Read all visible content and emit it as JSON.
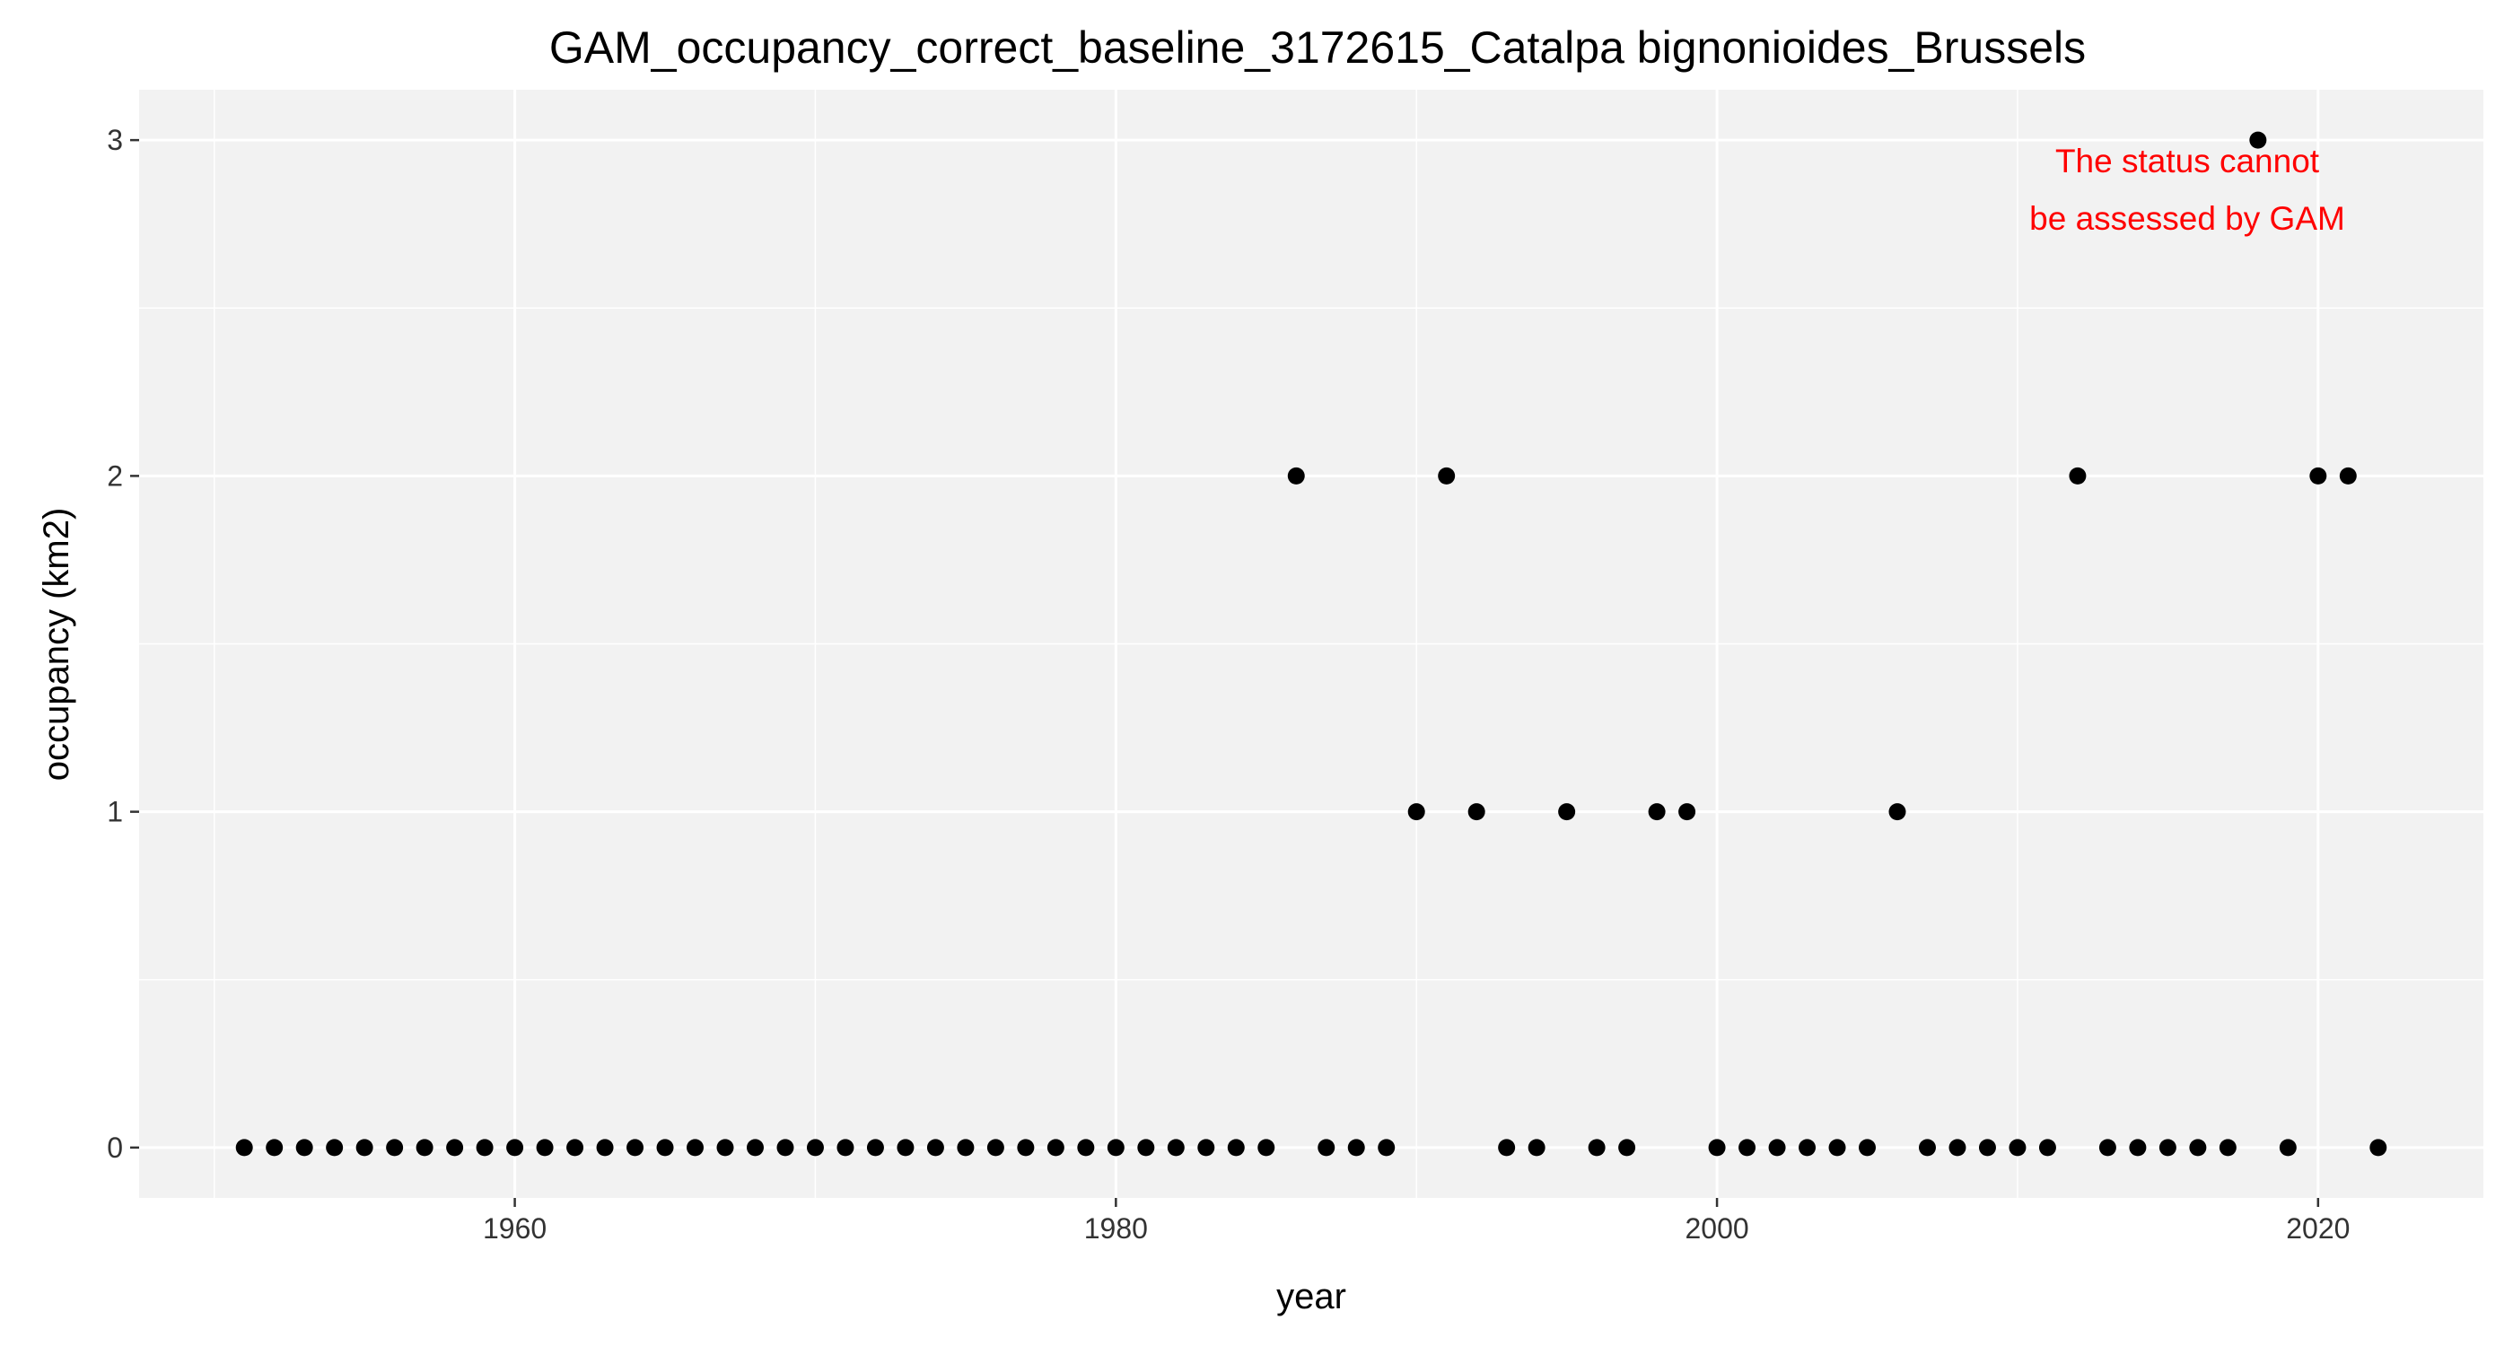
{
  "chart_data": {
    "type": "scatter",
    "title": "GAM_occupancy_correct_baseline_3172615_Catalpa bignonioides_Brussels",
    "xlabel": "year",
    "ylabel": "occupancy (km2)",
    "xlim": [
      1947.5,
      2025.5
    ],
    "ylim": [
      -0.15,
      3.15
    ],
    "x_ticks": [
      1960,
      1980,
      2000,
      2020
    ],
    "y_ticks": [
      0,
      1,
      2,
      3
    ],
    "grid": true,
    "legend": "none",
    "annotation": {
      "lines": [
        "The status cannot",
        "be assessed by GAM"
      ],
      "color": "#ff0000"
    },
    "colors": {
      "panel_background": "#f2f2f2",
      "grid": "#ffffff",
      "points": "#000000"
    },
    "x": [
      1951,
      1952,
      1953,
      1954,
      1955,
      1956,
      1957,
      1958,
      1959,
      1960,
      1961,
      1962,
      1963,
      1964,
      1965,
      1966,
      1967,
      1968,
      1969,
      1970,
      1971,
      1972,
      1973,
      1974,
      1975,
      1976,
      1977,
      1978,
      1979,
      1980,
      1981,
      1982,
      1983,
      1984,
      1985,
      1986,
      1987,
      1988,
      1989,
      1990,
      1991,
      1992,
      1993,
      1994,
      1995,
      1996,
      1997,
      1998,
      1999,
      2000,
      2001,
      2002,
      2003,
      2004,
      2005,
      2006,
      2007,
      2008,
      2009,
      2010,
      2011,
      2012,
      2013,
      2014,
      2015,
      2016,
      2017,
      2018,
      2019,
      2020,
      2021,
      2022
    ],
    "y": [
      0,
      0,
      0,
      0,
      0,
      0,
      0,
      0,
      0,
      0,
      0,
      0,
      0,
      0,
      0,
      0,
      0,
      0,
      0,
      0,
      0,
      0,
      0,
      0,
      0,
      0,
      0,
      0,
      0,
      0,
      0,
      0,
      0,
      0,
      0,
      2,
      0,
      0,
      0,
      1,
      2,
      1,
      0,
      0,
      1,
      0,
      0,
      1,
      1,
      0,
      0,
      0,
      0,
      0,
      0,
      1,
      0,
      0,
      0,
      0,
      0,
      2,
      0,
      0,
      0,
      0,
      0,
      3,
      0,
      2,
      2,
      0
    ]
  }
}
